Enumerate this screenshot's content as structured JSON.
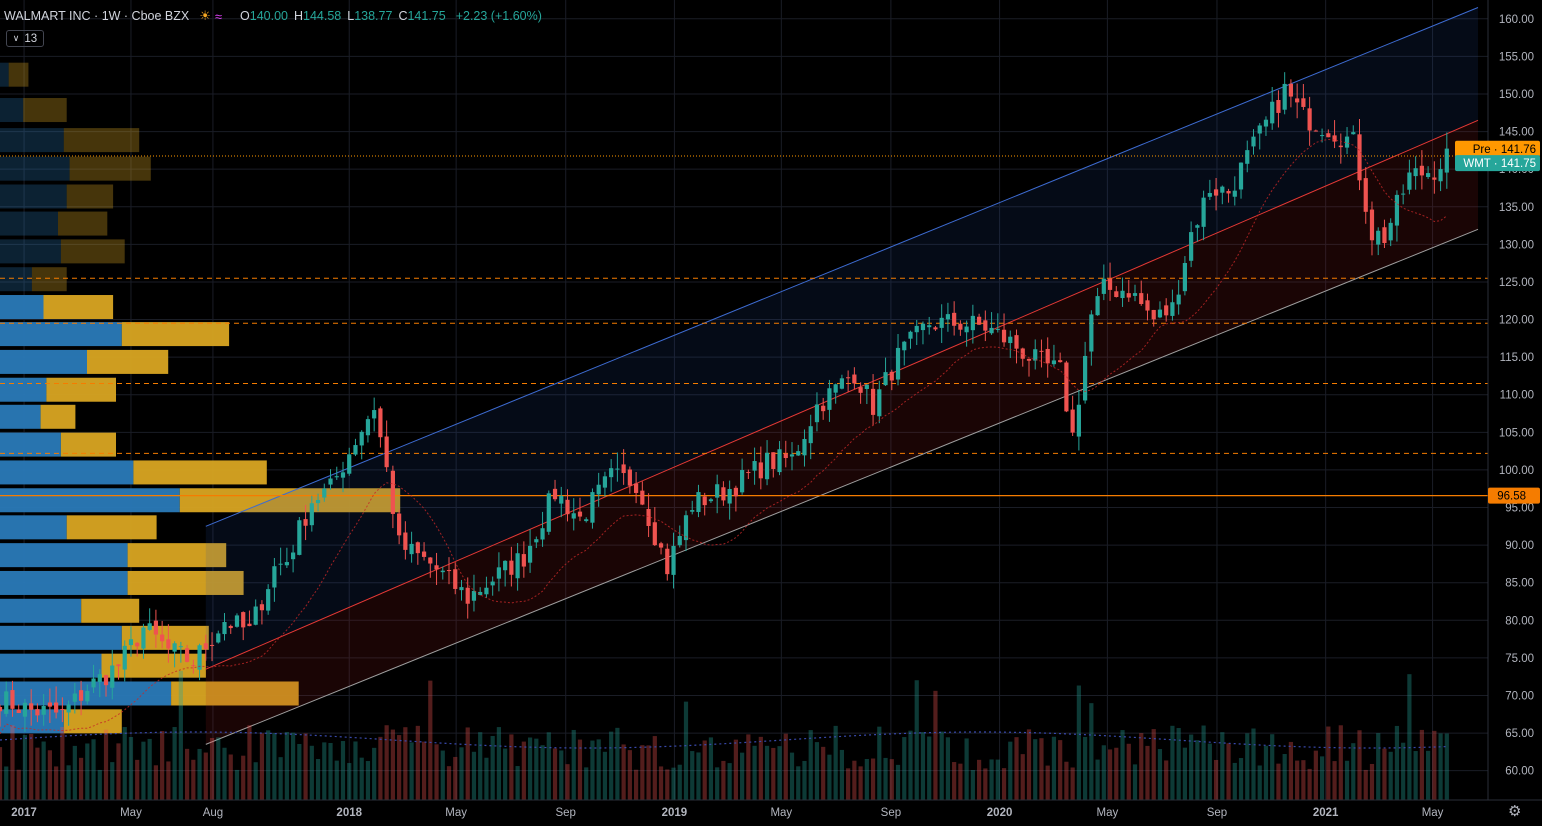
{
  "header": {
    "symbol": "WALMART INC · 1W · Cboe BZX",
    "open_label": "O",
    "open": "140.00",
    "high_label": "H",
    "high": "144.58",
    "low_label": "L",
    "low": "138.77",
    "close_label": "C",
    "close": "141.75",
    "change": "+2.23 (+1.60%)",
    "indicator_badge": "13",
    "sun_icon": "sun-icon",
    "wave_icon": "wave-icon"
  },
  "colors": {
    "up": "#26a69a",
    "down": "#ef5350",
    "grid": "#1a1d26",
    "vp_blue": "#2a7ab8",
    "vp_gold": "#d9a522",
    "level": "#f57c00",
    "pre": "#ff9800",
    "last": "#26a69a",
    "chan_upper": "#3d6bd1",
    "chan_mid": "#e53935",
    "chan_lower": "#9e9e9e"
  },
  "chart_data": {
    "type": "candlestick",
    "symbol": "WMT",
    "interval": "1W",
    "y_axis": {
      "min": 56.5,
      "max": 162.5,
      "ticks": [
        60,
        65,
        70,
        75,
        80,
        85,
        90,
        95,
        100,
        105,
        110,
        115,
        120,
        125,
        130,
        135,
        140,
        145,
        150,
        155,
        160
      ]
    },
    "x_axis": {
      "start": "2016-12-05",
      "end": "2021-06-21",
      "labels": [
        {
          "date": "2017-01-01",
          "text": "2017",
          "bold": true
        },
        {
          "date": "2017-05-01",
          "text": "May"
        },
        {
          "date": "2017-08-01",
          "text": "Aug"
        },
        {
          "date": "2018-01-01",
          "text": "2018",
          "bold": true
        },
        {
          "date": "2018-05-01",
          "text": "May"
        },
        {
          "date": "2018-09-01",
          "text": "Sep"
        },
        {
          "date": "2019-01-01",
          "text": "2019",
          "bold": true
        },
        {
          "date": "2019-05-01",
          "text": "May"
        },
        {
          "date": "2019-09-01",
          "text": "Sep"
        },
        {
          "date": "2020-01-01",
          "text": "2020",
          "bold": true
        },
        {
          "date": "2020-05-01",
          "text": "May"
        },
        {
          "date": "2020-09-01",
          "text": "Sep"
        },
        {
          "date": "2021-01-01",
          "text": "2021",
          "bold": true
        },
        {
          "date": "2021-05-01",
          "text": "May"
        }
      ]
    },
    "price_path": [
      [
        "2016-12-05",
        69.5
      ],
      [
        "2017-01-09",
        68.0
      ],
      [
        "2017-02-13",
        67.5
      ],
      [
        "2017-03-13",
        71.0
      ],
      [
        "2017-04-17",
        74.0
      ],
      [
        "2017-05-15",
        79.0
      ],
      [
        "2017-06-12",
        76.0
      ],
      [
        "2017-07-10",
        74.5
      ],
      [
        "2017-08-14",
        80.0
      ],
      [
        "2017-09-11",
        78.5
      ],
      [
        "2017-10-09",
        87.0
      ],
      [
        "2017-10-23",
        88.0
      ],
      [
        "2017-11-20",
        96.0
      ],
      [
        "2017-12-11",
        97.5
      ],
      [
        "2018-01-08",
        104.0
      ],
      [
        "2018-01-29",
        108.5
      ],
      [
        "2018-02-12",
        100.0
      ],
      [
        "2018-02-26",
        90.0
      ],
      [
        "2018-04-02",
        87.5
      ],
      [
        "2018-05-14",
        83.0
      ],
      [
        "2018-06-11",
        85.5
      ],
      [
        "2018-07-16",
        88.5
      ],
      [
        "2018-08-20",
        97.0
      ],
      [
        "2018-09-17",
        93.5
      ],
      [
        "2018-10-22",
        99.0
      ],
      [
        "2018-11-19",
        98.5
      ],
      [
        "2018-12-24",
        87.0
      ],
      [
        "2019-01-21",
        95.5
      ],
      [
        "2019-03-04",
        97.5
      ],
      [
        "2019-04-15",
        101.0
      ],
      [
        "2019-05-13",
        101.5
      ],
      [
        "2019-06-10",
        108.5
      ],
      [
        "2019-07-22",
        113.0
      ],
      [
        "2019-08-12",
        108.5
      ],
      [
        "2019-09-09",
        115.0
      ],
      [
        "2019-10-14",
        119.5
      ],
      [
        "2019-11-18",
        119.5
      ],
      [
        "2019-12-16",
        119.0
      ],
      [
        "2020-01-13",
        117.0
      ],
      [
        "2020-02-10",
        114.5
      ],
      [
        "2020-03-09",
        113.0
      ],
      [
        "2020-03-23",
        104.5
      ],
      [
        "2020-04-13",
        120.5
      ],
      [
        "2020-04-27",
        124.0
      ],
      [
        "2020-05-25",
        124.0
      ],
      [
        "2020-06-22",
        120.0
      ],
      [
        "2020-07-13",
        121.5
      ],
      [
        "2020-08-03",
        131.5
      ],
      [
        "2020-08-24",
        137.5
      ],
      [
        "2020-09-14",
        137.0
      ],
      [
        "2020-10-12",
        143.0
      ],
      [
        "2020-11-16",
        150.5
      ],
      [
        "2020-12-07",
        147.0
      ],
      [
        "2021-01-04",
        145.5
      ],
      [
        "2021-02-01",
        143.5
      ],
      [
        "2021-02-22",
        131.5
      ],
      [
        "2021-03-08",
        131.0
      ],
      [
        "2021-04-05",
        139.0
      ],
      [
        "2021-05-03",
        140.0
      ],
      [
        "2021-05-17",
        141.75
      ]
    ],
    "horizontal_levels": [
      125.5,
      119.5,
      111.5,
      102.2
    ],
    "level_line": 96.58,
    "level_label": "96.58",
    "pre_price": 141.76,
    "pre_label": "Pre · 141.76",
    "last_price": 141.75,
    "last_label": "WMT · 141.75",
    "channel": {
      "start": "2017-07-24",
      "end": "2021-06-21",
      "upper": [
        92.5,
        161.5
      ],
      "mid": [
        73.5,
        146.5
      ],
      "lower": [
        63.5,
        132.0
      ]
    },
    "volume_profile": [
      {
        "price": 152.5,
        "buy": 0.15,
        "sell": 0.34
      },
      {
        "price": 147.8,
        "buy": 0.4,
        "sell": 0.75
      },
      {
        "price": 143.8,
        "buy": 1.1,
        "sell": 1.3
      },
      {
        "price": 140.0,
        "buy": 1.2,
        "sell": 1.4
      },
      {
        "price": 136.3,
        "buy": 1.15,
        "sell": 0.8
      },
      {
        "price": 132.7,
        "buy": 1.0,
        "sell": 0.85
      },
      {
        "price": 129.0,
        "buy": 1.05,
        "sell": 1.1
      },
      {
        "price": 125.3,
        "buy": 0.55,
        "sell": 0.6
      },
      {
        "price": 121.6,
        "buy": 0.75,
        "sell": 1.2
      },
      {
        "price": 118.0,
        "buy": 2.1,
        "sell": 1.85
      },
      {
        "price": 114.3,
        "buy": 1.5,
        "sell": 1.4
      },
      {
        "price": 110.6,
        "buy": 0.8,
        "sell": 1.2
      },
      {
        "price": 107.0,
        "buy": 0.7,
        "sell": 0.6
      },
      {
        "price": 103.3,
        "buy": 1.05,
        "sell": 0.95
      },
      {
        "price": 99.6,
        "buy": 2.3,
        "sell": 2.3
      },
      {
        "price": 95.9,
        "buy": 3.1,
        "sell": 3.8
      },
      {
        "price": 92.3,
        "buy": 1.15,
        "sell": 1.55
      },
      {
        "price": 88.6,
        "buy": 2.2,
        "sell": 1.7
      },
      {
        "price": 84.9,
        "buy": 2.2,
        "sell": 2.0
      },
      {
        "price": 81.2,
        "buy": 1.4,
        "sell": 1.0
      },
      {
        "price": 77.6,
        "buy": 2.1,
        "sell": 1.5
      },
      {
        "price": 73.9,
        "buy": 1.75,
        "sell": 1.8
      },
      {
        "price": 70.2,
        "buy": 2.95,
        "sell": 2.2
      },
      {
        "price": 66.5,
        "buy": 1.1,
        "sell": 1.0
      }
    ]
  }
}
